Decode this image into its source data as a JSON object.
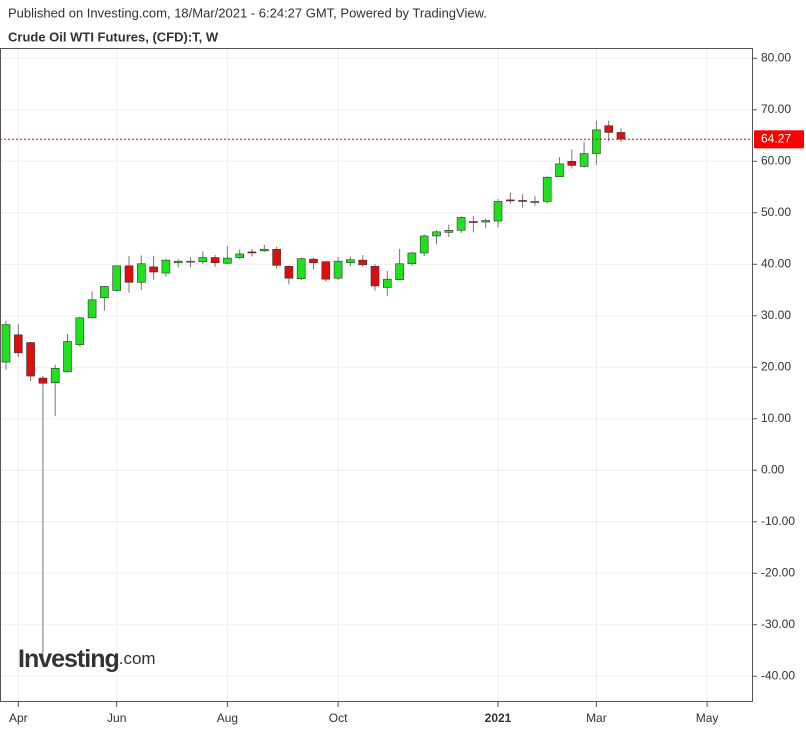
{
  "header": {
    "published": "Published on Investing.com, 18/Mar/2021 - 6:24:27 GMT, Powered by TradingView.",
    "symbol": "Crude Oil WTI Futures, (CFD):T, W"
  },
  "logo": {
    "main": "Investing",
    "suffix": ".com"
  },
  "chart_data": {
    "type": "candlestick",
    "categories": [
      null,
      "Apr",
      null,
      null,
      null,
      null,
      null,
      null,
      null,
      "Jun",
      null,
      null,
      null,
      null,
      null,
      null,
      null,
      null,
      "Aug",
      null,
      null,
      null,
      null,
      null,
      null,
      null,
      null,
      "Oct",
      null,
      null,
      null,
      null,
      null,
      null,
      null,
      null,
      null,
      null,
      null,
      null,
      "2021",
      null,
      null,
      null,
      null,
      null,
      null,
      null,
      "Mar",
      null,
      null,
      null,
      null,
      null,
      null,
      null,
      null,
      "May",
      null,
      null
    ],
    "open": [
      21,
      26.3,
      24.8,
      17.9,
      17,
      19.1,
      24.4,
      29.6,
      33.5,
      34.9,
      39.7,
      36.5,
      39.5,
      38.3,
      40.3,
      40.4,
      40.5,
      41.3,
      40.2,
      41.3,
      42.4,
      42.6,
      42.9,
      39.6,
      37.2,
      41,
      40.5,
      37.3,
      40.3,
      40.8,
      39.6,
      35.5,
      37,
      40.1,
      42.2,
      45.5,
      46.2,
      46.6,
      48.3,
      48.2,
      48.4,
      52.5,
      52.4,
      52.1,
      52.2,
      57,
      60,
      59,
      61.5,
      66.9,
      65.6,
      null,
      null,
      null,
      null,
      null,
      null,
      null,
      null,
      null
    ],
    "high": [
      29,
      28.4,
      24.9,
      18.3,
      20.5,
      26.5,
      29.8,
      34.7,
      35.8,
      39.8,
      41.6,
      41.7,
      41.6,
      41.1,
      41,
      41.4,
      42.5,
      41.8,
      43.5,
      42.9,
      43,
      43.8,
      43.4,
      39.8,
      41.3,
      41.3,
      40.6,
      41.4,
      41.5,
      41.8,
      40,
      38.7,
      43,
      42.4,
      45.8,
      46.6,
      47.7,
      49.3,
      49.4,
      48.9,
      52.7,
      53.9,
      53.6,
      53.3,
      57.1,
      60.8,
      62.3,
      63.8,
      67.9,
      67.9,
      66.4,
      null,
      null,
      null,
      null,
      null,
      null,
      null,
      null,
      null
    ],
    "low": [
      19.5,
      22,
      17.3,
      -37,
      10.5,
      19,
      24,
      29.5,
      31,
      34.7,
      34.5,
      35,
      37,
      37.6,
      39.4,
      39.4,
      40,
      39.5,
      40,
      41,
      41.5,
      42.4,
      39.2,
      36.1,
      36.9,
      39,
      36.6,
      36.9,
      39.6,
      39.5,
      34.9,
      33.8,
      36.9,
      39.7,
      41.6,
      43.9,
      45.3,
      46.1,
      46.2,
      47,
      47.2,
      51.8,
      51,
      51.4,
      51.8,
      57,
      58.6,
      58.8,
      59.3,
      63.9,
      63.8,
      null,
      null,
      null,
      null,
      null,
      null,
      null,
      null,
      null
    ],
    "close": [
      28.3,
      22.8,
      18.3,
      16.9,
      19.8,
      25,
      29.6,
      33.1,
      35.7,
      39.7,
      36.5,
      40.1,
      38.5,
      40.8,
      40.6,
      40.6,
      41.3,
      40.3,
      41.2,
      42,
      42.3,
      42.9,
      39.8,
      37.3,
      41.1,
      40.3,
      37.1,
      40.6,
      40.9,
      39.9,
      35.8,
      37.1,
      40.1,
      42.2,
      45.5,
      46.3,
      46.6,
      49.1,
      48.2,
      48.5,
      52.2,
      52.3,
      52.3,
      52.2,
      56.9,
      59.5,
      59.2,
      61.5,
      66.1,
      65.6,
      64.3,
      null,
      null,
      null,
      null,
      null,
      null,
      null,
      null,
      null
    ],
    "up_color": "#21e11f",
    "down_color": "#e00d0d",
    "last_price": 64.27,
    "last_price_color": "#ff0000",
    "ylim": [
      -45,
      82
    ],
    "yticks": [
      {
        "value": 80,
        "label": "80.00"
      },
      {
        "value": 70,
        "label": "70.00"
      },
      {
        "value": 60,
        "label": "60.00"
      },
      {
        "value": 50,
        "label": "50.00"
      },
      {
        "value": 40,
        "label": "40.00"
      },
      {
        "value": 30,
        "label": "30.00"
      },
      {
        "value": 20,
        "label": "20.00"
      },
      {
        "value": 10,
        "label": "10.00"
      },
      {
        "value": 0,
        "label": "0.00"
      },
      {
        "value": -10,
        "label": "-10.00"
      },
      {
        "value": -20,
        "label": "-20.00"
      },
      {
        "value": -30,
        "label": "-30.00"
      },
      {
        "value": -40,
        "label": "-40.00"
      }
    ],
    "grid": true
  }
}
